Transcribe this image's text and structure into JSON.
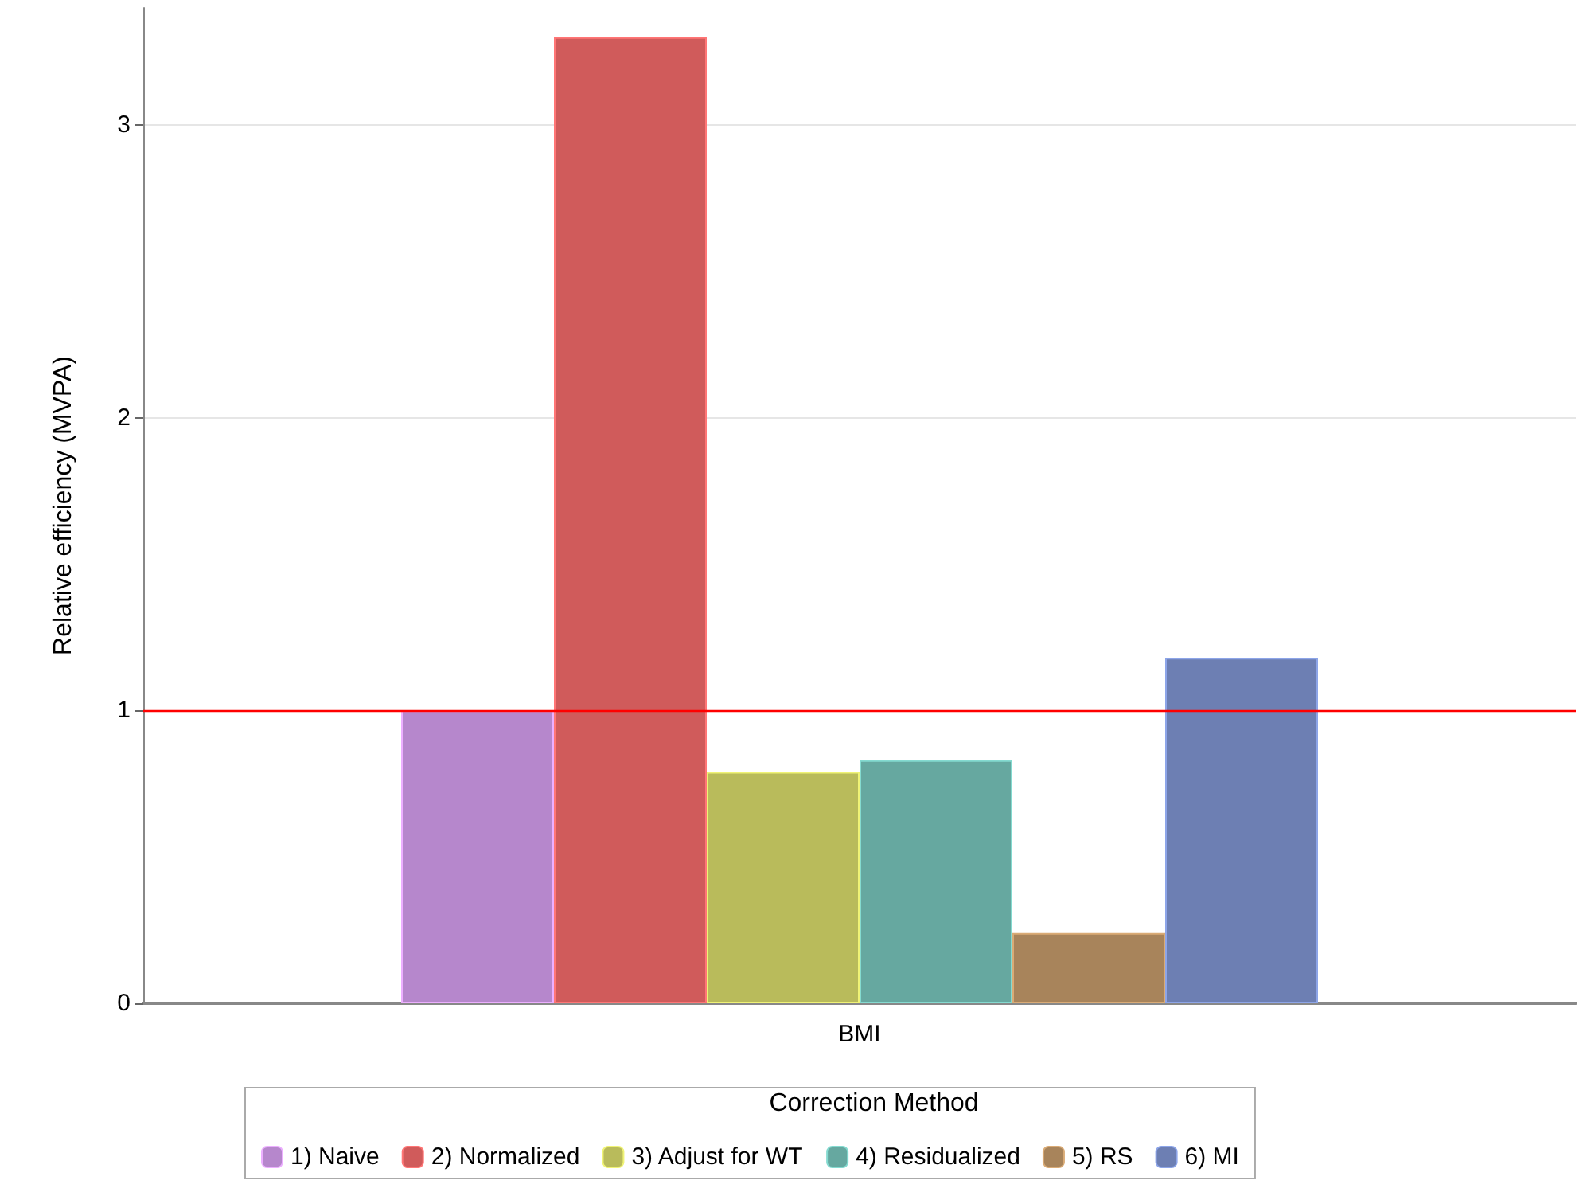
{
  "chart_data": {
    "type": "bar",
    "ylabel": "Relative efficiency (MVPA)",
    "legend_title": "Correction Method",
    "categories": [
      "BMI"
    ],
    "series": [
      {
        "name": "1) Naive",
        "color": "#b687cc",
        "values": [
          1.0
        ]
      },
      {
        "name": "2) Normalized",
        "color": "#d05b5b",
        "values": [
          3.3
        ]
      },
      {
        "name": "3) Adjust for WT",
        "color": "#b9bb5b",
        "values": [
          0.79
        ]
      },
      {
        "name": "4) Residualized",
        "color": "#66a8a0",
        "values": [
          0.83
        ]
      },
      {
        "name": "5) RS",
        "color": "#a8845b",
        "values": [
          0.24
        ]
      },
      {
        "name": "6) MI",
        "color": "#6d7fb3",
        "values": [
          1.18
        ]
      }
    ],
    "ylim": [
      0,
      3.4
    ],
    "yticks": [
      0,
      1,
      2,
      3
    ],
    "grid": "y",
    "legend": "bottom",
    "ref_lines": [
      {
        "axis": "y",
        "value": 1,
        "color": "#ff0000"
      }
    ]
  }
}
